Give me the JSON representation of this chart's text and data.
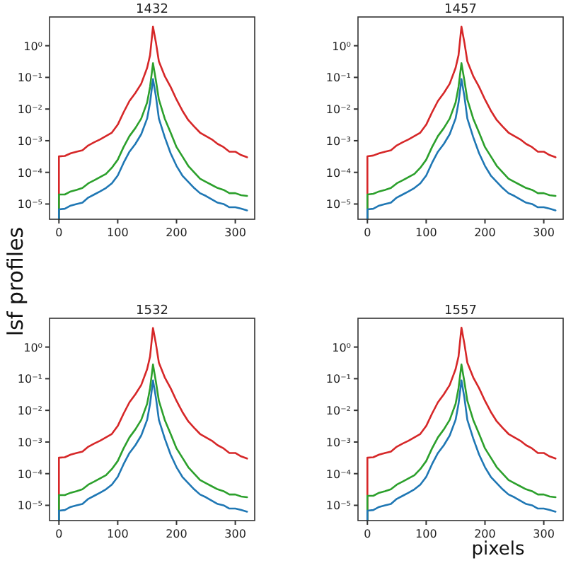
{
  "chart_data": [
    {
      "type": "line",
      "title": "1432",
      "ylabel": "lsf profiles",
      "log": "y",
      "xlim": [
        -16,
        333
      ],
      "ylim": [
        3.3e-06,
        8.1
      ],
      "xticks": [
        0,
        100,
        200,
        300
      ],
      "yticks": [
        {
          "value": 1e-05,
          "label": "10⁻⁵"
        },
        {
          "value": 0.0001,
          "label": "10⁻⁴"
        },
        {
          "value": 0.001,
          "label": "10⁻³"
        },
        {
          "value": 0.01,
          "label": "10⁻²"
        },
        {
          "value": 0.1,
          "label": "10⁻¹"
        },
        {
          "value": 1,
          "label": "10⁰"
        }
      ],
      "x": [
        0,
        0,
        10,
        20,
        30,
        40,
        50,
        60,
        70,
        80,
        90,
        100,
        110,
        120,
        130,
        140,
        150,
        155,
        160,
        165,
        170,
        180,
        190,
        200,
        210,
        220,
        230,
        240,
        250,
        260,
        270,
        280,
        290,
        300,
        310,
        320
      ],
      "series": [
        {
          "color": "#d62728",
          "values": [
            3.3e-06,
            0.00032,
            0.00033,
            0.0004,
            0.00045,
            0.0005,
            0.00071,
            0.00089,
            0.0011,
            0.0014,
            0.0018,
            0.0032,
            0.0079,
            0.018,
            0.032,
            0.063,
            0.2,
            0.5,
            4.0,
            1.26,
            0.32,
            0.11,
            0.05,
            0.02,
            0.0089,
            0.0045,
            0.0028,
            0.0018,
            0.0014,
            0.0011,
            0.00079,
            0.00063,
            0.00045,
            0.00045,
            0.00035,
            0.0003
          ]
        },
        {
          "color": "#2ca02c",
          "values": [
            3.3e-06,
            2e-05,
            2e-05,
            2.5e-05,
            2.8e-05,
            3.2e-05,
            4.5e-05,
            5.6e-05,
            7.1e-05,
            8.9e-05,
            0.00014,
            0.00025,
            0.00063,
            0.0014,
            0.0025,
            0.005,
            0.016,
            0.05,
            0.28,
            0.079,
            0.02,
            0.005,
            0.0018,
            0.00063,
            0.00032,
            0.00016,
            0.0001,
            6.3e-05,
            5e-05,
            4e-05,
            3.2e-05,
            2.8e-05,
            2.2e-05,
            2.2e-05,
            1.9e-05,
            1.8e-05
          ]
        },
        {
          "color": "#1f77b4",
          "values": [
            3.3e-06,
            6.8e-06,
            7.1e-06,
            8.9e-06,
            1e-05,
            1.1e-05,
            1.6e-05,
            2e-05,
            2.5e-05,
            3.2e-05,
            4.5e-05,
            7.9e-05,
            0.0002,
            0.00045,
            0.00079,
            0.0016,
            0.005,
            0.016,
            0.089,
            0.025,
            0.005,
            0.0013,
            0.0004,
            0.00016,
            7.9e-05,
            5e-05,
            3.2e-05,
            2.2e-05,
            1.8e-05,
            1.4e-05,
            1.1e-05,
            1e-05,
            7.9e-06,
            7.9e-06,
            7.1e-06,
            6.3e-06
          ]
        }
      ]
    },
    {
      "type": "line",
      "title": "1457",
      "log": "y",
      "xlim": [
        -16,
        333
      ],
      "ylim": [
        3.3e-06,
        8.1
      ],
      "xticks": [
        0,
        100,
        200,
        300
      ],
      "yticks": [
        {
          "value": 1e-05,
          "label": "10⁻⁵"
        },
        {
          "value": 0.0001,
          "label": "10⁻⁴"
        },
        {
          "value": 0.001,
          "label": "10⁻³"
        },
        {
          "value": 0.01,
          "label": "10⁻²"
        },
        {
          "value": 0.1,
          "label": "10⁻¹"
        },
        {
          "value": 1,
          "label": "10⁰"
        }
      ],
      "x": [
        0,
        0,
        10,
        20,
        30,
        40,
        50,
        60,
        70,
        80,
        90,
        100,
        110,
        120,
        130,
        140,
        150,
        155,
        160,
        165,
        170,
        180,
        190,
        200,
        210,
        220,
        230,
        240,
        250,
        260,
        270,
        280,
        290,
        300,
        310,
        320
      ],
      "series": [
        {
          "color": "#d62728",
          "values": [
            3.3e-06,
            0.00032,
            0.00034,
            0.0004,
            0.00045,
            0.0005,
            0.00071,
            0.00089,
            0.0011,
            0.0014,
            0.0018,
            0.0032,
            0.0079,
            0.018,
            0.032,
            0.063,
            0.2,
            0.5,
            4.0,
            1.26,
            0.32,
            0.11,
            0.05,
            0.02,
            0.0089,
            0.0045,
            0.0028,
            0.0018,
            0.0014,
            0.0011,
            0.00079,
            0.00063,
            0.00045,
            0.00045,
            0.00035,
            0.0003
          ]
        },
        {
          "color": "#2ca02c",
          "values": [
            3.3e-06,
            2e-05,
            2.1e-05,
            2.5e-05,
            2.8e-05,
            3.2e-05,
            4.5e-05,
            5.6e-05,
            7.1e-05,
            8.9e-05,
            0.00014,
            0.00025,
            0.00063,
            0.0014,
            0.0025,
            0.005,
            0.016,
            0.05,
            0.28,
            0.079,
            0.02,
            0.005,
            0.0018,
            0.00063,
            0.00032,
            0.00016,
            0.0001,
            6.3e-05,
            5e-05,
            4e-05,
            3.2e-05,
            2.8e-05,
            2.2e-05,
            2.2e-05,
            1.9e-05,
            1.8e-05
          ]
        },
        {
          "color": "#1f77b4",
          "values": [
            3.3e-06,
            6.8e-06,
            7.1e-06,
            8.9e-06,
            1e-05,
            1.1e-05,
            1.6e-05,
            2e-05,
            2.5e-05,
            3.2e-05,
            4.5e-05,
            7.9e-05,
            0.0002,
            0.00045,
            0.00079,
            0.0016,
            0.005,
            0.016,
            0.089,
            0.025,
            0.005,
            0.0013,
            0.0004,
            0.00016,
            7.9e-05,
            5e-05,
            3.2e-05,
            2.2e-05,
            1.8e-05,
            1.4e-05,
            1.1e-05,
            1e-05,
            7.9e-06,
            7.9e-06,
            7.1e-06,
            6.3e-06
          ]
        }
      ]
    },
    {
      "type": "line",
      "title": "1532",
      "log": "y",
      "xlim": [
        -16,
        333
      ],
      "ylim": [
        3.3e-06,
        8.1
      ],
      "xticks": [
        0,
        100,
        200,
        300
      ],
      "yticks": [
        {
          "value": 1e-05,
          "label": "10⁻⁵"
        },
        {
          "value": 0.0001,
          "label": "10⁻⁴"
        },
        {
          "value": 0.001,
          "label": "10⁻³"
        },
        {
          "value": 0.01,
          "label": "10⁻²"
        },
        {
          "value": 0.1,
          "label": "10⁻¹"
        },
        {
          "value": 1,
          "label": "10⁰"
        }
      ],
      "x": [
        0,
        0,
        10,
        20,
        30,
        40,
        50,
        60,
        70,
        80,
        90,
        100,
        110,
        120,
        130,
        140,
        150,
        155,
        160,
        165,
        170,
        180,
        190,
        200,
        210,
        220,
        230,
        240,
        250,
        260,
        270,
        280,
        290,
        300,
        310,
        320
      ],
      "series": [
        {
          "color": "#d62728",
          "values": [
            3.3e-06,
            0.00032,
            0.00033,
            0.0004,
            0.00045,
            0.0005,
            0.00071,
            0.00089,
            0.0011,
            0.0014,
            0.0018,
            0.0032,
            0.0079,
            0.018,
            0.032,
            0.063,
            0.2,
            0.5,
            4.0,
            1.26,
            0.32,
            0.11,
            0.05,
            0.02,
            0.0089,
            0.0045,
            0.0028,
            0.0018,
            0.0014,
            0.0011,
            0.00079,
            0.00063,
            0.00045,
            0.00045,
            0.00035,
            0.0003
          ]
        },
        {
          "color": "#2ca02c",
          "values": [
            3.3e-06,
            2.1e-05,
            2.1e-05,
            2.5e-05,
            2.8e-05,
            3.2e-05,
            4.5e-05,
            5.6e-05,
            7.1e-05,
            8.9e-05,
            0.00014,
            0.00025,
            0.00063,
            0.0014,
            0.0025,
            0.005,
            0.016,
            0.05,
            0.28,
            0.079,
            0.02,
            0.005,
            0.0018,
            0.00063,
            0.00032,
            0.00016,
            0.0001,
            6.3e-05,
            5e-05,
            4e-05,
            3.2e-05,
            2.8e-05,
            2.2e-05,
            2.2e-05,
            1.9e-05,
            1.8e-05
          ]
        },
        {
          "color": "#1f77b4",
          "values": [
            3.3e-06,
            6.8e-06,
            7.1e-06,
            8.9e-06,
            1e-05,
            1.1e-05,
            1.6e-05,
            2e-05,
            2.5e-05,
            3.2e-05,
            4.5e-05,
            7.9e-05,
            0.0002,
            0.00045,
            0.00079,
            0.0016,
            0.005,
            0.016,
            0.089,
            0.025,
            0.005,
            0.0013,
            0.0004,
            0.00016,
            7.9e-05,
            5e-05,
            3.2e-05,
            2.2e-05,
            1.8e-05,
            1.4e-05,
            1.1e-05,
            1e-05,
            7.9e-06,
            7.9e-06,
            7.1e-06,
            6.3e-06
          ]
        }
      ]
    },
    {
      "type": "line",
      "title": "1557",
      "xlabel": "pixels",
      "log": "y",
      "xlim": [
        -16,
        333
      ],
      "ylim": [
        3.3e-06,
        8.1
      ],
      "xticks": [
        0,
        100,
        200,
        300
      ],
      "yticks": [
        {
          "value": 1e-05,
          "label": "10⁻⁵"
        },
        {
          "value": 0.0001,
          "label": "10⁻⁴"
        },
        {
          "value": 0.001,
          "label": "10⁻³"
        },
        {
          "value": 0.01,
          "label": "10⁻²"
        },
        {
          "value": 0.1,
          "label": "10⁻¹"
        },
        {
          "value": 1,
          "label": "10⁰"
        }
      ],
      "x": [
        0,
        0,
        10,
        20,
        30,
        40,
        50,
        60,
        70,
        80,
        90,
        100,
        110,
        120,
        130,
        140,
        150,
        155,
        160,
        165,
        170,
        180,
        190,
        200,
        210,
        220,
        230,
        240,
        250,
        260,
        270,
        280,
        290,
        300,
        310,
        320
      ],
      "series": [
        {
          "color": "#d62728",
          "values": [
            3.3e-06,
            0.00032,
            0.00033,
            0.0004,
            0.00045,
            0.0005,
            0.00071,
            0.00089,
            0.0011,
            0.0014,
            0.0018,
            0.0032,
            0.0079,
            0.018,
            0.032,
            0.063,
            0.2,
            0.5,
            4.1,
            1.26,
            0.32,
            0.11,
            0.05,
            0.02,
            0.0089,
            0.0045,
            0.0028,
            0.0018,
            0.0014,
            0.0011,
            0.00079,
            0.00063,
            0.00045,
            0.00045,
            0.00035,
            0.0003
          ]
        },
        {
          "color": "#2ca02c",
          "values": [
            3.3e-06,
            2e-05,
            2e-05,
            2.5e-05,
            2.8e-05,
            3.2e-05,
            4.5e-05,
            5.6e-05,
            7.1e-05,
            8.9e-05,
            0.00014,
            0.00025,
            0.00063,
            0.0014,
            0.0025,
            0.005,
            0.016,
            0.05,
            0.28,
            0.079,
            0.02,
            0.005,
            0.0018,
            0.00063,
            0.00032,
            0.00016,
            0.0001,
            6.3e-05,
            5e-05,
            4e-05,
            3.2e-05,
            2.8e-05,
            2.2e-05,
            2.2e-05,
            1.9e-05,
            1.8e-05
          ]
        },
        {
          "color": "#1f77b4",
          "values": [
            3.3e-06,
            6.8e-06,
            7.1e-06,
            8.9e-06,
            1e-05,
            1.1e-05,
            1.6e-05,
            2e-05,
            2.5e-05,
            3.2e-05,
            4.5e-05,
            7.9e-05,
            0.0002,
            0.00045,
            0.00079,
            0.0016,
            0.005,
            0.016,
            0.089,
            0.025,
            0.005,
            0.0013,
            0.0004,
            0.00016,
            7.9e-05,
            5e-05,
            3.2e-05,
            2.2e-05,
            1.8e-05,
            1.4e-05,
            1.1e-05,
            1e-05,
            7.9e-06,
            7.9e-06,
            7.1e-06,
            6.3e-06
          ]
        }
      ]
    }
  ]
}
